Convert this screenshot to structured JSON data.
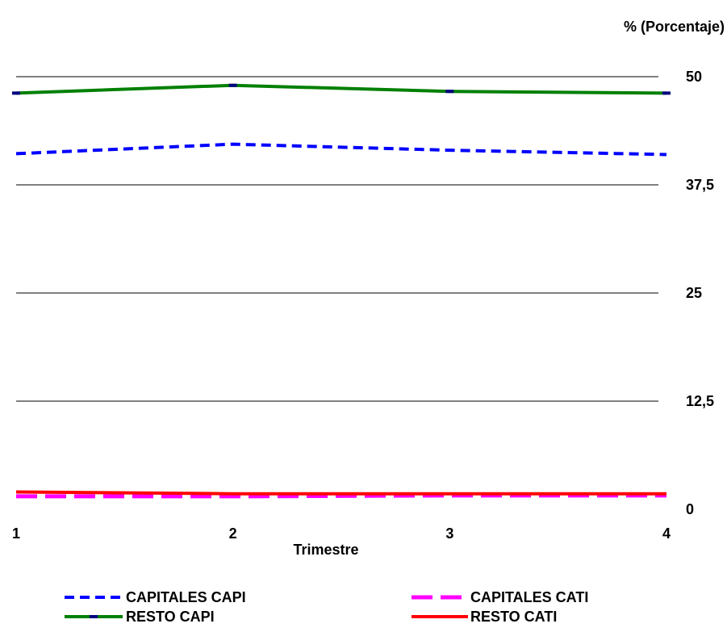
{
  "chart_data": {
    "type": "line",
    "title": "",
    "xlabel": "Trimestre",
    "ylabel": "% (Porcentaje)",
    "x": [
      1,
      2,
      3,
      4
    ],
    "x_tick_labels": [
      "1",
      "2",
      "3",
      "4"
    ],
    "ylim": [
      0,
      50
    ],
    "y_ticks": [
      0,
      12.5,
      25,
      37.5,
      50
    ],
    "y_tick_labels": [
      "0",
      "12,5",
      "25",
      "37,5",
      "50"
    ],
    "y_axis_side": "right",
    "grid": true,
    "legend_position": "bottom",
    "series": [
      {
        "name": "CAPITALES CAPI",
        "values": [
          41.1,
          42.2,
          41.5,
          41.0
        ],
        "color": "#0000ff",
        "line_style": "dashed"
      },
      {
        "name": "CAPITALES CATI",
        "values": [
          1.5,
          1.5,
          1.6,
          1.6
        ],
        "color": "#ff00ff",
        "line_style": "long-dashed"
      },
      {
        "name": "RESTO CAPI",
        "values": [
          48.1,
          49.0,
          48.3,
          48.1
        ],
        "color": "#008000",
        "line_style": "solid",
        "marker": "dash",
        "marker_color": "#000080"
      },
      {
        "name": "RESTO CATI",
        "values": [
          2.0,
          1.8,
          1.8,
          1.8
        ],
        "color": "#ff0000",
        "line_style": "solid"
      }
    ]
  }
}
